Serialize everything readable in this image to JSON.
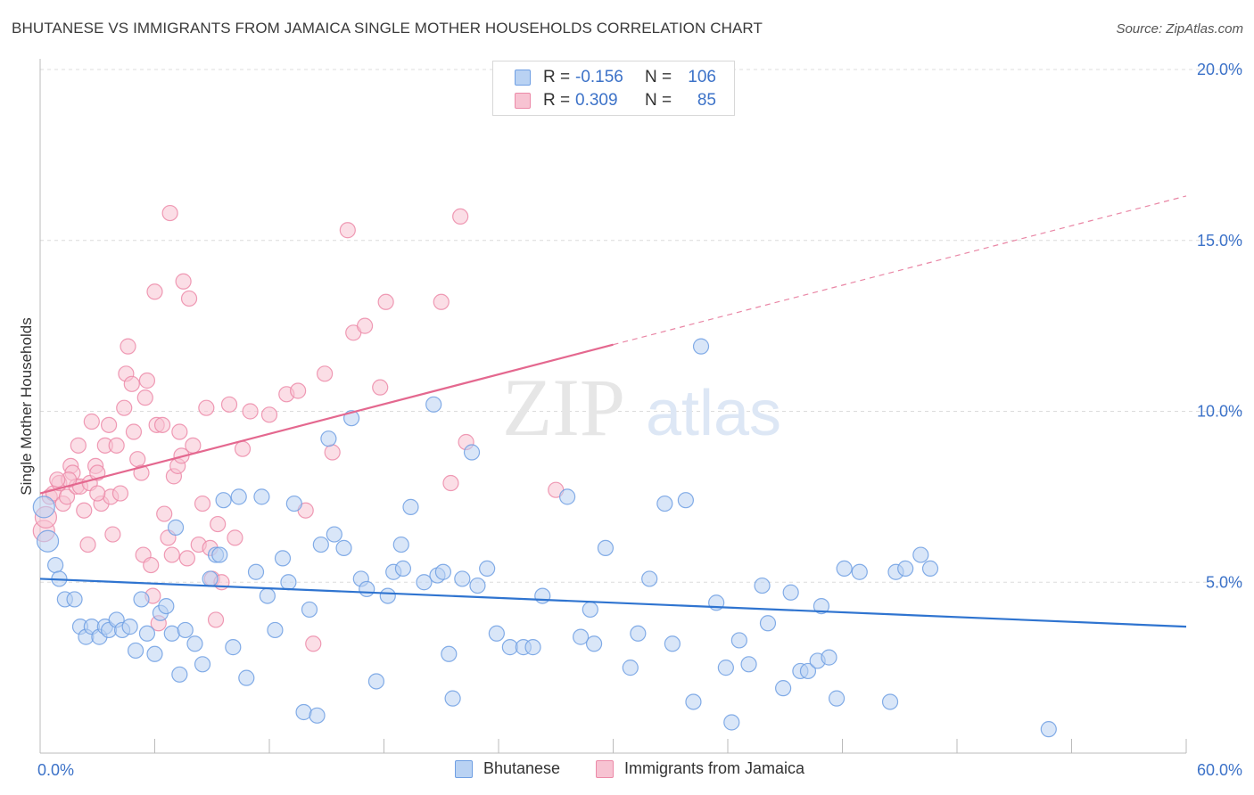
{
  "title": "BHUTANESE VS IMMIGRANTS FROM JAMAICA SINGLE MOTHER HOUSEHOLDS CORRELATION CHART",
  "source": "Source: ZipAtlas.com",
  "watermark": {
    "zip": "ZIP",
    "atlas": "atlas"
  },
  "colors": {
    "blue": "#6f9fe3",
    "blue_fill": "#b9d2f3",
    "blue_line": "#2f74d0",
    "pink": "#ec8aa8",
    "pink_fill": "#f7c3d2",
    "pink_line": "#e4688f",
    "grid": "#dcdcdc",
    "tick_text": "#3c72c8"
  },
  "legend_top": [
    {
      "series": "Bhutanese",
      "r_label": "R =",
      "r_value": "-0.156",
      "n_label": "N =",
      "n_value": "106"
    },
    {
      "series": "Immigrants from Jamaica",
      "r_label": "R =",
      "r_value": "0.309",
      "n_label": "N =",
      "n_value": "85"
    }
  ],
  "chart_data": {
    "type": "scatter",
    "title": "BHUTANESE VS IMMIGRANTS FROM JAMAICA SINGLE MOTHER HOUSEHOLDS CORRELATION CHART",
    "xlabel": "",
    "ylabel": "Single Mother Households",
    "xlim": [
      0,
      60
    ],
    "ylim": [
      0,
      20
    ],
    "x_tick_labels": [
      "0.0%",
      "60.0%"
    ],
    "y_ticks": [
      5,
      10,
      15,
      20
    ],
    "y_tick_labels": [
      "5.0%",
      "10.0%",
      "15.0%",
      "20.0%"
    ],
    "grid": true,
    "legend_position": "bottom",
    "series": [
      {
        "name": "Bhutanese",
        "color": "#6f9fe3",
        "trend": {
          "x": [
            0,
            60
          ],
          "y": [
            5.1,
            3.7
          ],
          "dashed_from_x": null
        },
        "points": [
          [
            0.2,
            7.2
          ],
          [
            0.4,
            6.2
          ],
          [
            0.8,
            5.5
          ],
          [
            1.0,
            5.1
          ],
          [
            1.3,
            4.5
          ],
          [
            1.8,
            4.5
          ],
          [
            2.1,
            3.7
          ],
          [
            2.4,
            3.4
          ],
          [
            2.7,
            3.7
          ],
          [
            3.1,
            3.4
          ],
          [
            3.4,
            3.7
          ],
          [
            3.6,
            3.6
          ],
          [
            4.0,
            3.9
          ],
          [
            4.3,
            3.6
          ],
          [
            4.7,
            3.7
          ],
          [
            5.0,
            3.0
          ],
          [
            5.3,
            4.5
          ],
          [
            5.6,
            3.5
          ],
          [
            6.0,
            2.9
          ],
          [
            6.3,
            4.1
          ],
          [
            6.6,
            4.3
          ],
          [
            6.9,
            3.5
          ],
          [
            7.1,
            6.6
          ],
          [
            7.3,
            2.3
          ],
          [
            7.6,
            3.6
          ],
          [
            8.1,
            3.2
          ],
          [
            8.5,
            2.6
          ],
          [
            8.9,
            5.1
          ],
          [
            9.2,
            5.8
          ],
          [
            9.4,
            5.8
          ],
          [
            9.6,
            7.4
          ],
          [
            10.1,
            3.1
          ],
          [
            10.4,
            7.5
          ],
          [
            10.8,
            2.2
          ],
          [
            11.3,
            5.3
          ],
          [
            11.6,
            7.5
          ],
          [
            11.9,
            4.6
          ],
          [
            12.3,
            3.6
          ],
          [
            12.7,
            5.7
          ],
          [
            13.0,
            5.0
          ],
          [
            13.3,
            7.3
          ],
          [
            13.8,
            1.2
          ],
          [
            14.1,
            4.2
          ],
          [
            14.5,
            1.1
          ],
          [
            14.7,
            6.1
          ],
          [
            15.1,
            9.2
          ],
          [
            15.4,
            6.4
          ],
          [
            15.9,
            6.0
          ],
          [
            16.3,
            9.8
          ],
          [
            16.8,
            5.1
          ],
          [
            17.1,
            4.8
          ],
          [
            17.6,
            2.1
          ],
          [
            18.2,
            4.6
          ],
          [
            18.5,
            5.3
          ],
          [
            18.9,
            6.1
          ],
          [
            19.0,
            5.4
          ],
          [
            19.4,
            7.2
          ],
          [
            20.1,
            5.0
          ],
          [
            20.6,
            10.2
          ],
          [
            20.8,
            5.2
          ],
          [
            21.1,
            5.3
          ],
          [
            21.4,
            2.9
          ],
          [
            21.6,
            1.6
          ],
          [
            22.1,
            5.1
          ],
          [
            22.6,
            8.8
          ],
          [
            22.9,
            4.9
          ],
          [
            23.4,
            5.4
          ],
          [
            23.9,
            3.5
          ],
          [
            24.6,
            3.1
          ],
          [
            25.3,
            3.1
          ],
          [
            25.8,
            3.1
          ],
          [
            26.3,
            4.6
          ],
          [
            27.6,
            7.5
          ],
          [
            28.3,
            3.4
          ],
          [
            28.8,
            4.2
          ],
          [
            29.0,
            3.2
          ],
          [
            29.6,
            6.0
          ],
          [
            30.9,
            2.5
          ],
          [
            31.3,
            3.5
          ],
          [
            31.9,
            5.1
          ],
          [
            32.7,
            7.3
          ],
          [
            33.1,
            3.2
          ],
          [
            33.8,
            7.4
          ],
          [
            34.2,
            1.5
          ],
          [
            34.6,
            11.9
          ],
          [
            35.4,
            4.4
          ],
          [
            35.9,
            2.5
          ],
          [
            36.2,
            0.9
          ],
          [
            36.6,
            3.3
          ],
          [
            37.1,
            2.6
          ],
          [
            37.8,
            4.9
          ],
          [
            38.1,
            3.8
          ],
          [
            38.9,
            1.9
          ],
          [
            39.3,
            4.7
          ],
          [
            39.8,
            2.4
          ],
          [
            40.2,
            2.4
          ],
          [
            40.7,
            2.7
          ],
          [
            40.9,
            4.3
          ],
          [
            41.3,
            2.8
          ],
          [
            41.7,
            1.6
          ],
          [
            42.1,
            5.4
          ],
          [
            42.9,
            5.3
          ],
          [
            44.8,
            5.3
          ],
          [
            45.3,
            5.4
          ],
          [
            46.1,
            5.8
          ],
          [
            46.6,
            5.4
          ],
          [
            52.8,
            0.7
          ],
          [
            44.5,
            1.5
          ]
        ]
      },
      {
        "name": "Immigrants from Jamaica",
        "color": "#ec8aa8",
        "trend": {
          "x": [
            0,
            60
          ],
          "y": [
            7.6,
            16.3
          ],
          "dashed_from_x": 30
        },
        "points": [
          [
            0.2,
            6.5
          ],
          [
            0.3,
            6.9
          ],
          [
            0.5,
            7.5
          ],
          [
            0.7,
            7.6
          ],
          [
            1.0,
            7.9
          ],
          [
            1.2,
            7.3
          ],
          [
            1.4,
            7.5
          ],
          [
            1.6,
            8.4
          ],
          [
            1.7,
            8.2
          ],
          [
            1.9,
            7.8
          ],
          [
            2.1,
            7.8
          ],
          [
            2.3,
            7.1
          ],
          [
            2.5,
            6.1
          ],
          [
            2.6,
            7.9
          ],
          [
            2.7,
            9.7
          ],
          [
            2.9,
            8.4
          ],
          [
            3.0,
            8.2
          ],
          [
            3.2,
            7.3
          ],
          [
            3.4,
            9.0
          ],
          [
            3.6,
            9.6
          ],
          [
            3.7,
            7.5
          ],
          [
            3.8,
            6.4
          ],
          [
            4.0,
            9.0
          ],
          [
            4.2,
            7.6
          ],
          [
            4.4,
            10.1
          ],
          [
            4.5,
            11.1
          ],
          [
            4.6,
            11.9
          ],
          [
            4.8,
            10.8
          ],
          [
            4.9,
            9.4
          ],
          [
            5.1,
            8.6
          ],
          [
            5.3,
            8.2
          ],
          [
            5.4,
            5.8
          ],
          [
            5.5,
            10.4
          ],
          [
            5.6,
            10.9
          ],
          [
            5.8,
            5.5
          ],
          [
            5.9,
            4.6
          ],
          [
            6.0,
            13.5
          ],
          [
            6.1,
            9.6
          ],
          [
            6.2,
            3.8
          ],
          [
            6.4,
            9.6
          ],
          [
            6.5,
            7.0
          ],
          [
            6.7,
            6.3
          ],
          [
            6.9,
            5.8
          ],
          [
            7.0,
            8.1
          ],
          [
            7.2,
            8.4
          ],
          [
            7.4,
            8.7
          ],
          [
            7.5,
            13.8
          ],
          [
            7.7,
            5.7
          ],
          [
            7.8,
            13.3
          ],
          [
            8.0,
            9.0
          ],
          [
            8.3,
            6.1
          ],
          [
            8.5,
            7.3
          ],
          [
            8.7,
            10.1
          ],
          [
            8.9,
            6.0
          ],
          [
            9.0,
            5.1
          ],
          [
            9.2,
            3.9
          ],
          [
            9.3,
            6.7
          ],
          [
            9.5,
            5.0
          ],
          [
            9.9,
            10.2
          ],
          [
            10.2,
            6.3
          ],
          [
            10.6,
            8.9
          ],
          [
            11.0,
            10.0
          ],
          [
            12.0,
            9.9
          ],
          [
            12.9,
            10.5
          ],
          [
            13.5,
            10.6
          ],
          [
            13.9,
            7.1
          ],
          [
            14.3,
            3.2
          ],
          [
            14.9,
            11.1
          ],
          [
            15.3,
            8.8
          ],
          [
            16.1,
            15.3
          ],
          [
            16.4,
            12.3
          ],
          [
            17.0,
            12.5
          ],
          [
            17.8,
            10.7
          ],
          [
            18.1,
            13.2
          ],
          [
            21.0,
            13.2
          ],
          [
            21.5,
            7.9
          ],
          [
            22.0,
            15.7
          ],
          [
            22.3,
            9.1
          ],
          [
            6.8,
            15.8
          ],
          [
            27.0,
            7.7
          ],
          [
            3.0,
            7.6
          ],
          [
            1.5,
            8.0
          ],
          [
            2.0,
            9.0
          ],
          [
            0.9,
            8.0
          ],
          [
            7.3,
            9.4
          ]
        ]
      }
    ]
  },
  "legend_bottom": [
    "Bhutanese",
    "Immigrants from Jamaica"
  ]
}
